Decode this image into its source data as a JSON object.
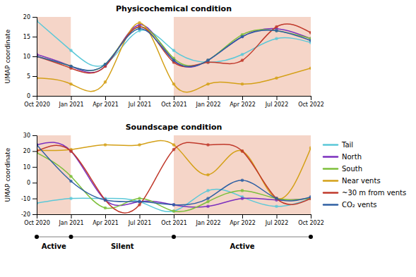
{
  "chart_data": [
    {
      "type": "line",
      "title": "Physicochemical condition",
      "y_label": "UMAP coordinate",
      "x": [
        0,
        3,
        6,
        9,
        12,
        15,
        18,
        21,
        24
      ],
      "xlim": [
        0,
        24
      ],
      "xticks": [
        {
          "value": 0,
          "label": "Oct 2020"
        },
        {
          "value": 3,
          "label": "Jan 2021"
        },
        {
          "value": 6,
          "label": "Apr 2021"
        },
        {
          "value": 9,
          "label": "Jul 2021"
        },
        {
          "value": 12,
          "label": "Oct 2021"
        },
        {
          "value": 15,
          "label": "Jan 2022"
        },
        {
          "value": 18,
          "label": "Apr 2022"
        },
        {
          "value": 21,
          "label": "Jul 2022"
        },
        {
          "value": 24,
          "label": "Oct 2022"
        }
      ],
      "ylim": [
        0,
        20
      ],
      "yticks": [
        0,
        5,
        10,
        15,
        20
      ],
      "grid": false,
      "marker": "circle",
      "regions": [
        {
          "start": 0,
          "end": 3,
          "color": "#F5D5C8"
        },
        {
          "start": 3,
          "end": 12,
          "color": "#FFFFFF"
        },
        {
          "start": 12,
          "end": 24,
          "color": "#F5D5C8"
        }
      ],
      "series": [
        {
          "name": "Tail",
          "color": "#5BC8D8",
          "values": [
            19.0,
            11.5,
            8.0,
            16.5,
            11.5,
            8.5,
            10.5,
            14.5,
            13.5
          ]
        },
        {
          "name": "North",
          "color": "#7B2FBE",
          "values": [
            10.5,
            7.5,
            7.5,
            18.0,
            9.0,
            9.0,
            15.0,
            17.0,
            14.5
          ]
        },
        {
          "name": "South",
          "color": "#7DBF3A",
          "values": [
            10.0,
            7.5,
            8.0,
            17.5,
            9.5,
            9.0,
            15.5,
            16.5,
            14.5
          ]
        },
        {
          "name": "Near vents",
          "color": "#D4A017",
          "values": [
            4.5,
            3.0,
            3.5,
            18.5,
            3.0,
            3.0,
            3.0,
            4.5,
            7.0
          ]
        },
        {
          "name": "~30 m from vents",
          "color": "#C0392B",
          "values": [
            10.0,
            7.0,
            7.5,
            17.5,
            8.5,
            8.5,
            9.0,
            17.5,
            16.0
          ]
        },
        {
          "name": "CO₂ vents",
          "color": "#2E5FA3",
          "values": [
            10.0,
            7.5,
            8.0,
            17.0,
            9.0,
            9.0,
            15.0,
            16.5,
            14.0
          ]
        }
      ]
    },
    {
      "type": "line",
      "title": "Soundscape condition",
      "y_label": "UMAP coordinate",
      "x": [
        0,
        3,
        6,
        9,
        12,
        15,
        18,
        21,
        24
      ],
      "xlim": [
        0,
        24
      ],
      "xticks": [
        {
          "value": 0,
          "label": "Oct 2020"
        },
        {
          "value": 3,
          "label": "Jan 2021"
        },
        {
          "value": 6,
          "label": "Apr 2021"
        },
        {
          "value": 9,
          "label": "Jul 2021"
        },
        {
          "value": 12,
          "label": "Oct 2021"
        },
        {
          "value": 15,
          "label": "Jan 2022"
        },
        {
          "value": 18,
          "label": "Apr 2022"
        },
        {
          "value": 21,
          "label": "Jul 2022"
        },
        {
          "value": 24,
          "label": "Oct 2022"
        }
      ],
      "ylim": [
        -20,
        30
      ],
      "yticks": [
        -20,
        -10,
        0,
        10,
        20,
        30
      ],
      "grid": false,
      "marker": "circle",
      "legend": "right",
      "regions": [
        {
          "start": 0,
          "end": 3,
          "color": "#F5D5C8",
          "label": "Active"
        },
        {
          "start": 3,
          "end": 12,
          "color": "#FFFFFF",
          "label": "Silent"
        },
        {
          "start": 12,
          "end": 24,
          "color": "#F5D5C8",
          "label": "Active"
        }
      ],
      "series": [
        {
          "name": "Tail",
          "color": "#5BC8D8",
          "values": [
            -13.0,
            -10.0,
            -10.0,
            -12.0,
            -18.0,
            -5.0,
            -9.0,
            -15.0,
            -10.0
          ]
        },
        {
          "name": "North",
          "color": "#7B2FBE",
          "values": [
            24.0,
            20.0,
            -11.0,
            -12.0,
            -14.0,
            -15.0,
            -10.0,
            -11.0,
            -10.0
          ]
        },
        {
          "name": "South",
          "color": "#7DBF3A",
          "values": [
            19.0,
            4.0,
            -16.0,
            -10.0,
            -18.0,
            -12.0,
            -5.0,
            -10.0,
            -10.0
          ]
        },
        {
          "name": "Near vents",
          "color": "#D4A017",
          "values": [
            20.5,
            21.0,
            24.0,
            24.0,
            24.0,
            5.0,
            20.0,
            -10.0,
            22.0
          ]
        },
        {
          "name": "~30 m from vents",
          "color": "#C0392B",
          "values": [
            20.0,
            20.0,
            -11.0,
            -14.0,
            21.0,
            24.0,
            20.0,
            -10.0,
            -10.0
          ]
        },
        {
          "name": "CO₂ vents",
          "color": "#2E5FA3",
          "values": [
            24.0,
            1.0,
            -11.0,
            -12.0,
            -14.0,
            -10.0,
            1.5,
            -10.0,
            -9.0
          ]
        }
      ]
    }
  ]
}
